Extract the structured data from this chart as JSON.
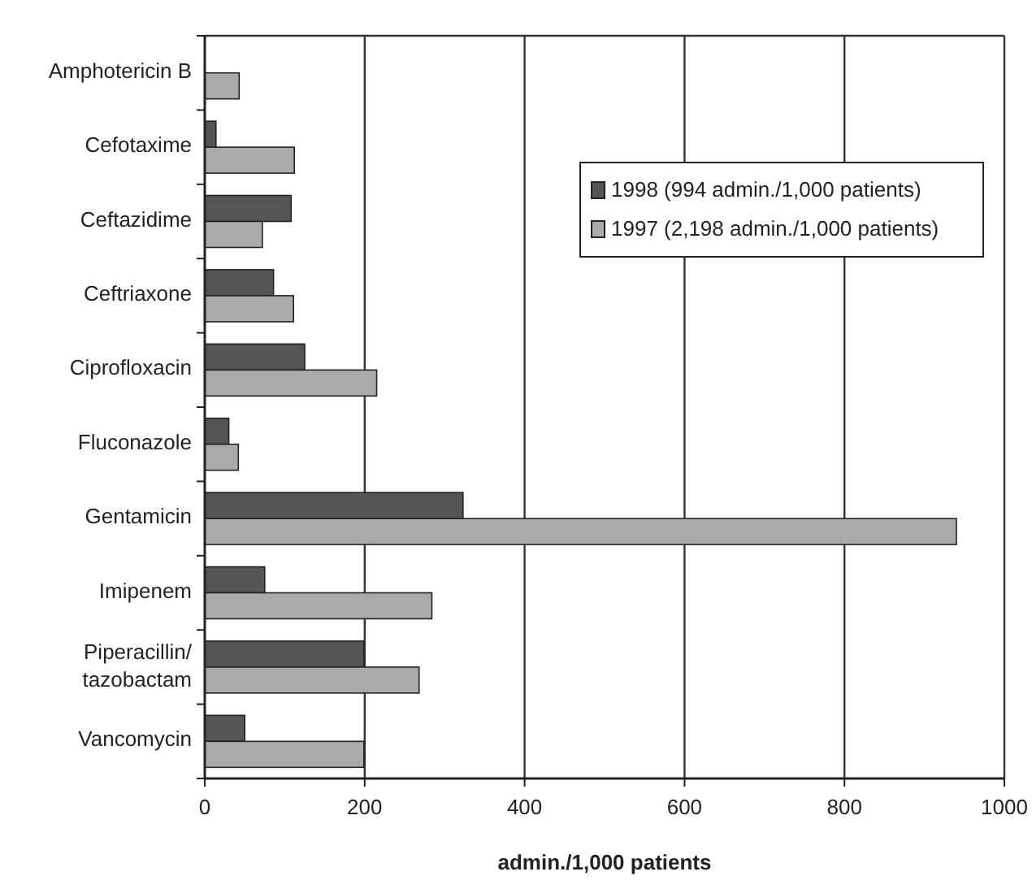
{
  "chart_data": {
    "type": "bar",
    "orientation": "horizontal",
    "xlabel": "admin./1,000 patients",
    "categories": [
      "Amphotericin B",
      "Cefotaxime",
      "Ceftazidime",
      "Ceftriaxone",
      "Ciprofloxacin",
      "Fluconazole",
      "Gentamicin",
      "Imipenem",
      "Piperacillin/ tazobactam",
      "Vancomycin"
    ],
    "series": [
      {
        "name": "1998 (994 admin./1,000 patients)",
        "color": "#555555",
        "values": [
          null,
          14,
          108,
          86,
          125,
          30,
          323,
          75,
          199,
          50
        ]
      },
      {
        "name": "1997 (2,198 admin./1,000 patients)",
        "color": "#aaaaaa",
        "values": [
          43,
          112,
          72,
          111,
          215,
          42,
          940,
          284,
          268,
          199
        ]
      }
    ],
    "xlim": [
      0,
      1000
    ],
    "xticks": [
      0,
      200,
      400,
      600,
      800,
      1000
    ],
    "grid": "x",
    "legend": "top right"
  }
}
